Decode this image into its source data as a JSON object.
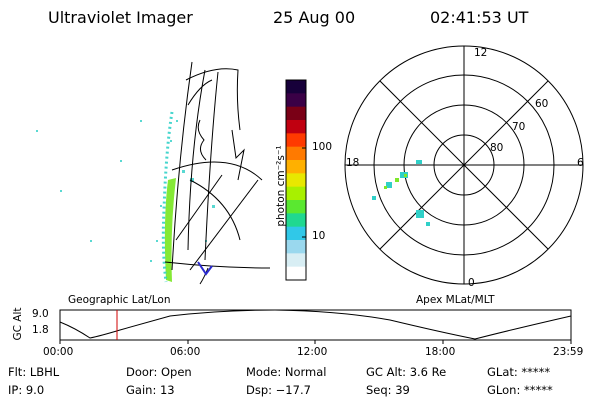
{
  "header": {
    "instrument": "Ultraviolet Imager",
    "date": "25 Aug 00",
    "time": "02:41:53 UT"
  },
  "colorbar": {
    "unit_label": "photon cm⁻²s⁻¹",
    "ticks": [
      "100",
      "10"
    ],
    "colors": [
      "#17003a",
      "#3a0046",
      "#7a0016",
      "#c00010",
      "#ff3a00",
      "#ff7a00",
      "#ffb000",
      "#e8e800",
      "#a8f000",
      "#5ae830",
      "#20d890",
      "#30c8e8",
      "#9ad8ee",
      "#d8eef4",
      "#ffffff"
    ]
  },
  "left_panel": {
    "label": "Geographic Lat/Lon"
  },
  "polar_panel": {
    "label": "Apex MLat/MLT",
    "mlt_labels": [
      "12",
      "18",
      "6",
      "0"
    ],
    "lat_labels": [
      "60",
      "70",
      "80"
    ]
  },
  "altitude_plot": {
    "y_label": "GC Alt",
    "y_ticks": [
      "9.0",
      "1.8"
    ],
    "x_ticks": [
      "00:00",
      "06:00",
      "12:00",
      "18:00",
      "23:59"
    ],
    "marker_time": "02:41:53"
  },
  "info": {
    "filter": "Flt: LBHL",
    "ip": "IP:  9.0",
    "door": "Door: Open",
    "gain": "Gain: 13",
    "mode": "Mode: Normal",
    "dsp": "Dsp:  −17.7",
    "gc_alt": "GC Alt: 3.6 Re",
    "seq": "Seq: 39",
    "glat": "GLat: *****",
    "glon": "GLon: *****"
  }
}
